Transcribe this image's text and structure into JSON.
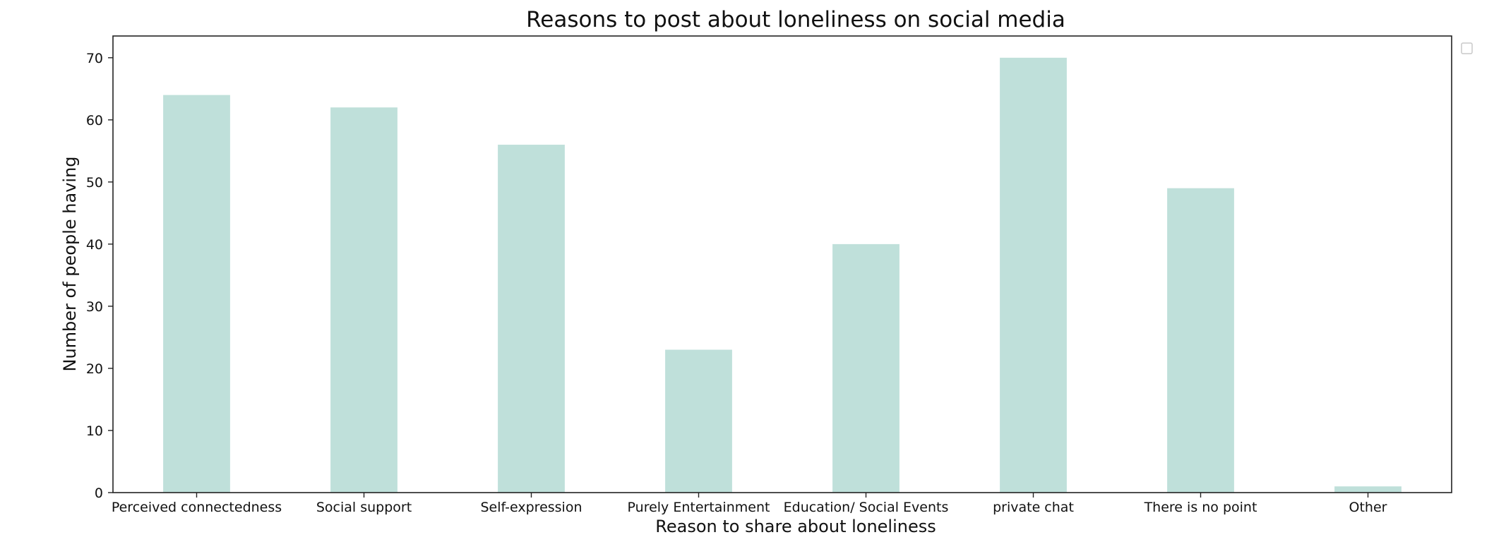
{
  "chart_data": {
    "type": "bar",
    "title": "Reasons to post about loneliness on social media",
    "xlabel": "Reason to share about loneliness",
    "ylabel": "Number of people having",
    "categories": [
      "Perceived connectedness",
      "Social support",
      "Self-expression",
      "Purely Entertainment",
      "Education/ Social Events",
      "private chat",
      "There is no point",
      "Other"
    ],
    "values": [
      64,
      62,
      56,
      23,
      40,
      70,
      49,
      1
    ],
    "ylim": [
      0,
      73.5
    ],
    "yticks": [
      0,
      10,
      20,
      30,
      40,
      50,
      60,
      70
    ],
    "bar_color": "#bfe0da",
    "grid": false,
    "legend": {
      "placement": "top-right",
      "entries": []
    }
  }
}
